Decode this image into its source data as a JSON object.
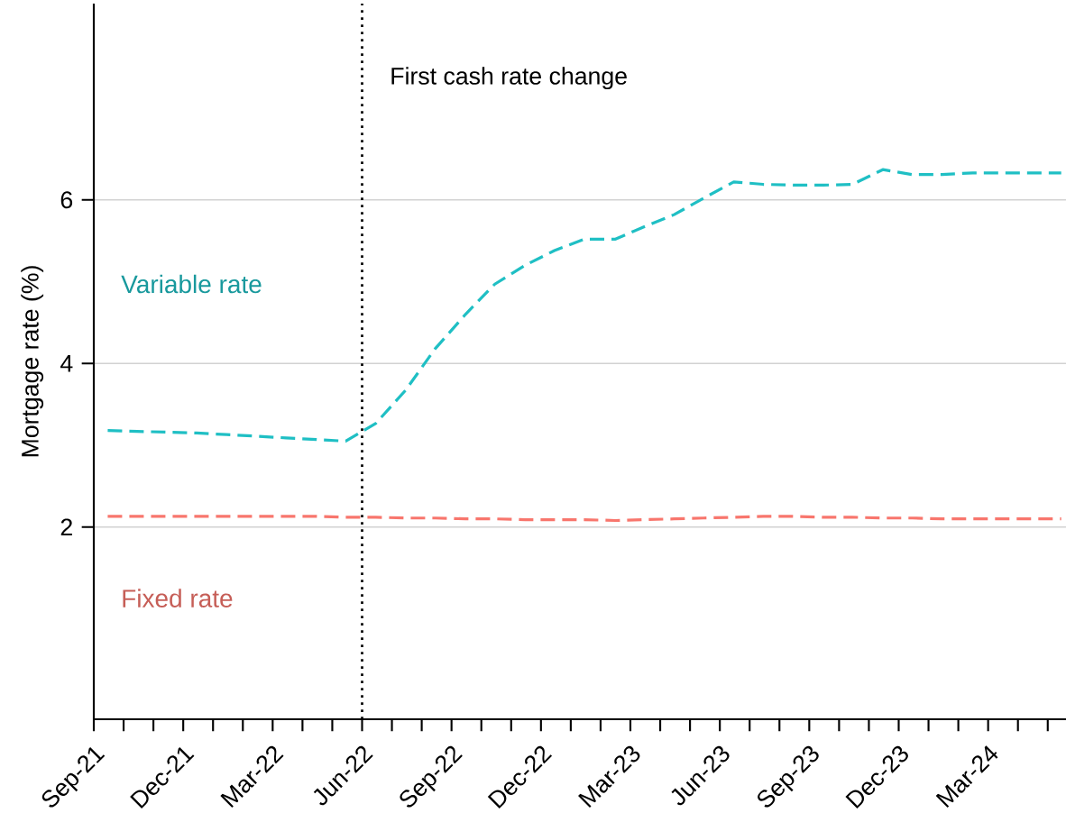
{
  "chart_data": {
    "type": "line",
    "ylabel": "Mortgage rate (%)",
    "x": [
      "2021-09-15",
      "2021-10-15",
      "2021-11-15",
      "2021-12-15",
      "2022-01-15",
      "2022-02-15",
      "2022-03-15",
      "2022-04-15",
      "2022-05-15",
      "2022-06-15",
      "2022-07-15",
      "2022-08-15",
      "2022-09-15",
      "2022-10-15",
      "2022-11-15",
      "2022-12-15",
      "2023-01-15",
      "2023-02-15",
      "2023-03-15",
      "2023-04-15",
      "2023-05-15",
      "2023-06-15",
      "2023-07-15",
      "2023-08-15",
      "2023-09-15",
      "2023-10-15",
      "2023-11-15",
      "2023-12-15",
      "2024-01-15",
      "2024-02-15",
      "2024-03-15",
      "2024-04-15",
      "2024-05-15"
    ],
    "series": [
      {
        "name": "Variable rate",
        "color": "#1fbfc4",
        "values": [
          3.18,
          3.17,
          3.16,
          3.15,
          3.13,
          3.11,
          3.09,
          3.07,
          3.05,
          3.27,
          3.67,
          4.18,
          4.6,
          4.97,
          5.2,
          5.38,
          5.52,
          5.52,
          5.67,
          5.82,
          6.02,
          6.22,
          6.19,
          6.18,
          6.18,
          6.19,
          6.37,
          6.31,
          6.31,
          6.33,
          6.33,
          6.33,
          6.33
        ]
      },
      {
        "name": "Fixed rate",
        "color": "#f8766d",
        "values": [
          2.13,
          2.13,
          2.13,
          2.13,
          2.13,
          2.13,
          2.13,
          2.13,
          2.12,
          2.12,
          2.11,
          2.11,
          2.1,
          2.1,
          2.09,
          2.09,
          2.09,
          2.08,
          2.09,
          2.1,
          2.11,
          2.12,
          2.13,
          2.13,
          2.12,
          2.12,
          2.11,
          2.11,
          2.1,
          2.1,
          2.1,
          2.1,
          2.1
        ]
      }
    ],
    "xlim": [
      "2021-09-01",
      "2024-05-20"
    ],
    "ylim": [
      -0.35,
      8.4
    ],
    "yticks": [
      2,
      4,
      6
    ],
    "xticks": [
      {
        "value": "2021-09",
        "label": "Sep-21"
      },
      {
        "value": "2021-10",
        "label": null
      },
      {
        "value": "2021-11",
        "label": null
      },
      {
        "value": "2021-12",
        "label": "Dec-21"
      },
      {
        "value": "2022-01",
        "label": null
      },
      {
        "value": "2022-02",
        "label": null
      },
      {
        "value": "2022-03",
        "label": "Mar-22"
      },
      {
        "value": "2022-04",
        "label": null
      },
      {
        "value": "2022-05",
        "label": null
      },
      {
        "value": "2022-06",
        "label": "Jun-22"
      },
      {
        "value": "2022-07",
        "label": null
      },
      {
        "value": "2022-08",
        "label": null
      },
      {
        "value": "2022-09",
        "label": "Sep-22"
      },
      {
        "value": "2022-10",
        "label": null
      },
      {
        "value": "2022-11",
        "label": null
      },
      {
        "value": "2022-12",
        "label": "Dec-22"
      },
      {
        "value": "2023-01",
        "label": null
      },
      {
        "value": "2023-02",
        "label": null
      },
      {
        "value": "2023-03",
        "label": "Mar-23"
      },
      {
        "value": "2023-04",
        "label": null
      },
      {
        "value": "2023-05",
        "label": null
      },
      {
        "value": "2023-06",
        "label": "Jun-23"
      },
      {
        "value": "2023-07",
        "label": null
      },
      {
        "value": "2023-08",
        "label": null
      },
      {
        "value": "2023-09",
        "label": "Sep-23"
      },
      {
        "value": "2023-10",
        "label": null
      },
      {
        "value": "2023-11",
        "label": null
      },
      {
        "value": "2023-12",
        "label": "Dec-23"
      },
      {
        "value": "2024-01",
        "label": null
      },
      {
        "value": "2024-02",
        "label": null
      },
      {
        "value": "2024-03",
        "label": "Mar-24"
      },
      {
        "value": "2024-04",
        "label": null
      },
      {
        "value": "2024-05",
        "label": null
      }
    ],
    "ref_lines": [
      {
        "axis": "x",
        "value": "2022-06",
        "label": "First cash rate change",
        "color": "#000000",
        "line_style": "dotted"
      }
    ],
    "grid": "y",
    "marker": "none",
    "line_style": "dashed"
  }
}
